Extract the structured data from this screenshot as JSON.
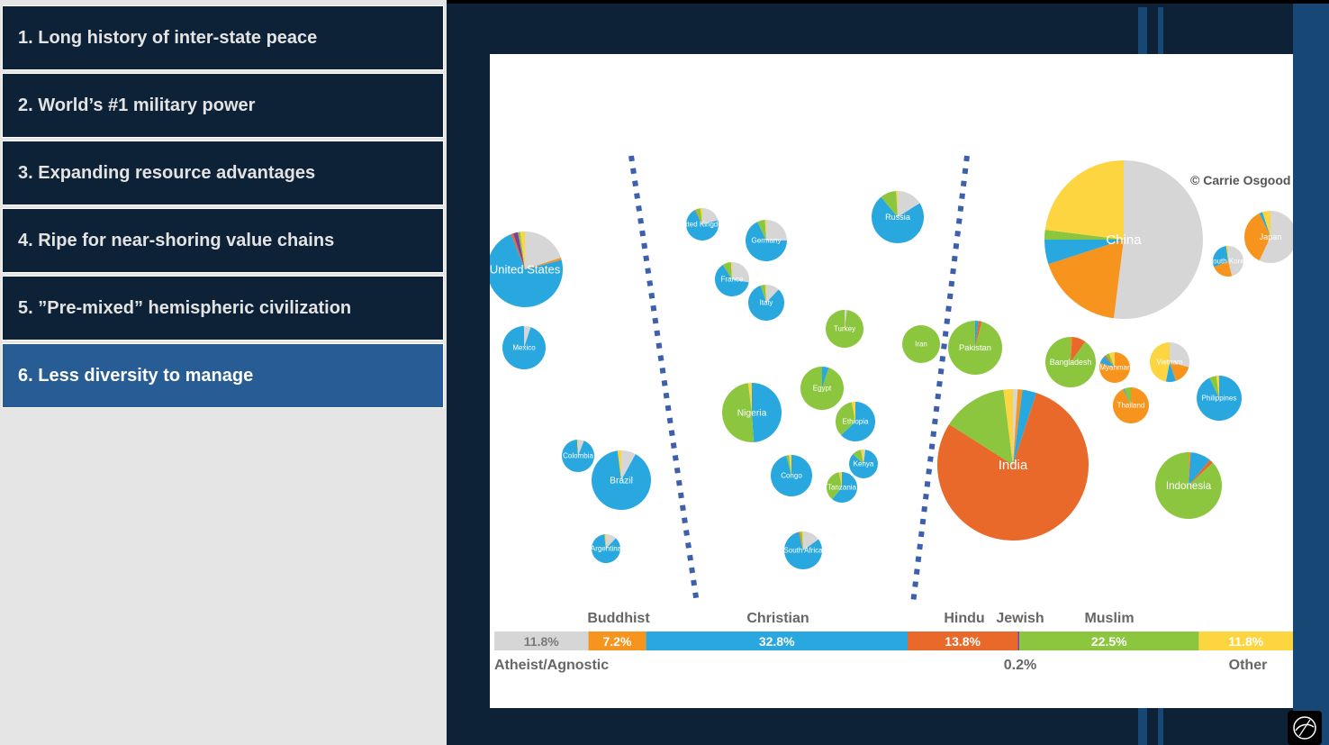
{
  "sidebar": {
    "items": [
      {
        "label": "1. Long history of inter-state peace",
        "active": false
      },
      {
        "label": "2. World’s #1 military power",
        "active": false
      },
      {
        "label": "3. Expanding resource advantages",
        "active": false
      },
      {
        "label": "4. Ripe for near-shoring value chains",
        "active": false
      },
      {
        "label": "5. ”Pre-mixed” hemispheric civilization",
        "active": false
      },
      {
        "label": "6. Less diversity to manage",
        "active": true
      }
    ]
  },
  "chart": {
    "copyright": "© Carrie Osgood",
    "religion_colors": {
      "atheist": "#d6d6d6",
      "buddhist": "#f7941d",
      "christian": "#29a8e0",
      "hindu": "#e8692a",
      "jewish": "#7b3fa0",
      "muslim": "#8cc63f",
      "other": "#fdd541"
    },
    "legend_top_labels": [
      "Buddhist",
      "Christian",
      "Hindu",
      "Jewish",
      "Muslim"
    ],
    "legend_bottom_labels": [
      "Atheist/Agnostic",
      "0.2%",
      "Other"
    ]
  },
  "chart_data": {
    "type": "bar",
    "title": "",
    "categories": [
      "Atheist/Agnostic",
      "Buddhist",
      "Christian",
      "Hindu",
      "Jewish",
      "Muslim",
      "Other"
    ],
    "values": [
      11.8,
      7.2,
      32.8,
      13.8,
      0.2,
      22.5,
      11.8
    ],
    "value_labels": [
      "11.8%",
      "7.2%",
      "32.8%",
      "13.8%",
      "",
      "22.5%",
      "11.8%"
    ],
    "stacked": true,
    "unit": "%",
    "bubbles": [
      {
        "name": "China",
        "composition": [
          52,
          18,
          5,
          0,
          0,
          2,
          23
        ]
      },
      {
        "name": "India",
        "composition": [
          1,
          1,
          3,
          79,
          0,
          14,
          2
        ]
      },
      {
        "name": "United States",
        "composition": [
          20,
          1,
          73,
          1,
          2,
          1,
          2
        ]
      },
      {
        "name": "Indonesia",
        "composition": [
          0,
          1,
          10,
          2,
          0,
          87,
          0
        ]
      },
      {
        "name": "Brazil",
        "composition": [
          8,
          0,
          90,
          0,
          0,
          0,
          2
        ]
      },
      {
        "name": "Nigeria",
        "composition": [
          0,
          0,
          49,
          0,
          0,
          49,
          2
        ]
      },
      {
        "name": "Pakistan",
        "composition": [
          0,
          0,
          2,
          2,
          0,
          96,
          0
        ]
      },
      {
        "name": "Bangladesh",
        "composition": [
          0,
          1,
          0,
          9,
          0,
          90,
          0
        ]
      },
      {
        "name": "Russia",
        "composition": [
          16,
          0,
          73,
          0,
          0,
          10,
          1
        ]
      },
      {
        "name": "Japan",
        "composition": [
          57,
          36,
          2,
          0,
          0,
          0,
          5
        ]
      },
      {
        "name": "Mexico",
        "composition": [
          5,
          0,
          95,
          0,
          0,
          0,
          0
        ]
      },
      {
        "name": "Philippines",
        "composition": [
          0,
          0,
          93,
          0,
          0,
          5,
          2
        ]
      },
      {
        "name": "Vietnam",
        "composition": [
          29,
          16,
          8,
          0,
          0,
          0,
          47
        ]
      },
      {
        "name": "Ethiopia",
        "composition": [
          0,
          0,
          63,
          0,
          0,
          34,
          3
        ]
      },
      {
        "name": "Egypt",
        "composition": [
          0,
          0,
          5,
          0,
          0,
          95,
          0
        ]
      },
      {
        "name": "Germany",
        "composition": [
          25,
          0,
          68,
          0,
          0,
          6,
          1
        ]
      },
      {
        "name": "Iran",
        "composition": [
          0,
          0,
          0,
          0,
          0,
          100,
          0
        ]
      },
      {
        "name": "Turkey",
        "composition": [
          2,
          0,
          0,
          0,
          0,
          98,
          0
        ]
      },
      {
        "name": "Congo",
        "composition": [
          0,
          0,
          96,
          0,
          0,
          2,
          2
        ]
      },
      {
        "name": "Thailand",
        "composition": [
          0,
          93,
          1,
          0,
          0,
          6,
          0
        ]
      },
      {
        "name": "France",
        "composition": [
          28,
          0,
          63,
          0,
          0,
          8,
          1
        ]
      },
      {
        "name": "United Kingdom",
        "composition": [
          21,
          0,
          71,
          1,
          0,
          5,
          2
        ]
      },
      {
        "name": "Italy",
        "composition": [
          12,
          0,
          83,
          0,
          0,
          4,
          1
        ]
      },
      {
        "name": "South Africa",
        "composition": [
          15,
          0,
          81,
          1,
          0,
          2,
          1
        ]
      },
      {
        "name": "Tanzania",
        "composition": [
          0,
          0,
          61,
          0,
          0,
          36,
          3
        ]
      },
      {
        "name": "Myanmar",
        "composition": [
          0,
          80,
          8,
          2,
          0,
          4,
          6
        ]
      },
      {
        "name": "South Korea",
        "composition": [
          46,
          23,
          29,
          0,
          0,
          0,
          2
        ]
      },
      {
        "name": "Colombia",
        "composition": [
          6,
          0,
          93,
          0,
          0,
          0,
          1
        ]
      },
      {
        "name": "Kenya",
        "composition": [
          2,
          0,
          85,
          0,
          0,
          10,
          3
        ]
      },
      {
        "name": "Argentina",
        "composition": [
          12,
          0,
          86,
          0,
          0,
          1,
          1
        ]
      }
    ]
  }
}
